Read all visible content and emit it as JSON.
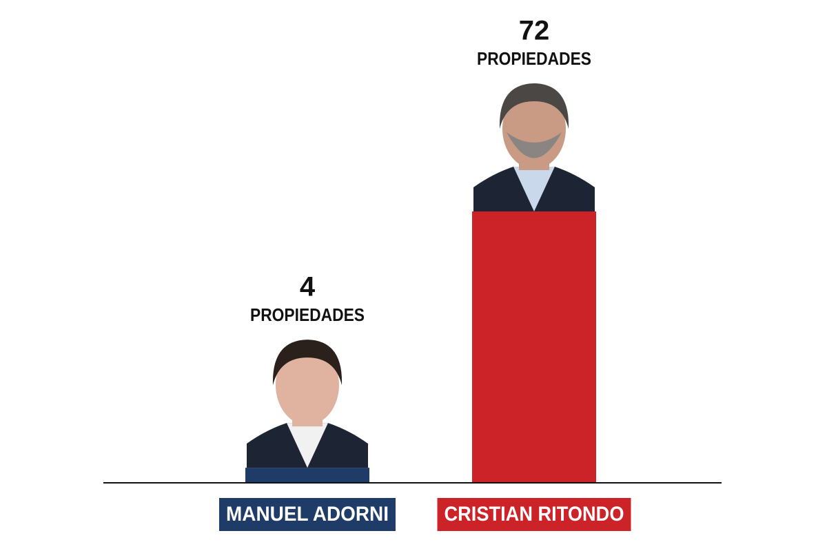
{
  "chart_data": {
    "type": "bar",
    "categories": [
      "MANUEL ADORNI",
      "CRISTIAN RITONDO"
    ],
    "values": [
      4,
      72
    ],
    "value_unit": "PROPIEDADES",
    "colors": [
      "#1f3b67",
      "#cc2329"
    ]
  }
}
